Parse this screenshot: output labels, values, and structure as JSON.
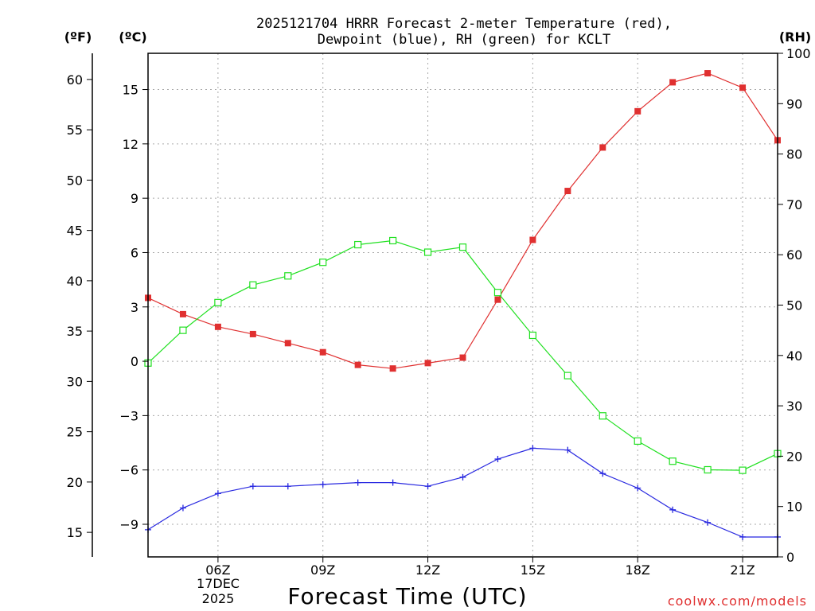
{
  "chart_data": {
    "type": "line",
    "title_line1": "2025121704 HRRR Forecast 2-meter Temperature (red),",
    "title_line2": "Dewpoint (blue), RH (green) for KCLT",
    "xlabel": "Forecast Time (UTC)",
    "credit": "coolwx.com/models",
    "unit_labels": {
      "fahrenheit": "(ºF)",
      "celsius": "(ºC)",
      "rh": "(RH)"
    },
    "date_labels": {
      "day": "17DEC",
      "year": "2025"
    },
    "x": [
      4,
      5,
      6,
      7,
      8,
      9,
      10,
      11,
      12,
      13,
      14,
      15,
      16,
      17,
      18,
      19,
      20,
      21,
      22
    ],
    "xlim": [
      4,
      22
    ],
    "x_ticks": [
      {
        "value": 6,
        "label": "06Z"
      },
      {
        "value": 9,
        "label": "09Z"
      },
      {
        "value": 12,
        "label": "12Z"
      },
      {
        "value": 15,
        "label": "15Z"
      },
      {
        "value": 18,
        "label": "18Z"
      },
      {
        "value": 21,
        "label": "21Z"
      }
    ],
    "ylim_celsius": [
      -10.8,
      17.0
    ],
    "celsius_ticks": [
      -9,
      -6,
      -3,
      0,
      3,
      6,
      9,
      12,
      15
    ],
    "celsius_tick_labels": [
      "−9",
      "−6",
      "−3",
      "0",
      "3",
      "6",
      "9",
      "12",
      "15"
    ],
    "fahrenheit_ticks": [
      15,
      20,
      25,
      30,
      35,
      40,
      45,
      50,
      55,
      60
    ],
    "fahrenheit_tick_labels": [
      "15",
      "20",
      "25",
      "30",
      "35",
      "40",
      "45",
      "50",
      "55",
      "60"
    ],
    "ylim_rh": [
      0,
      100
    ],
    "rh_ticks": [
      0,
      10,
      20,
      30,
      40,
      50,
      60,
      70,
      80,
      90,
      100
    ],
    "rh_tick_labels": [
      "0",
      "10",
      "20",
      "30",
      "40",
      "50",
      "60",
      "70",
      "80",
      "90",
      "100"
    ],
    "series": [
      {
        "name": "Temperature",
        "axis": "celsius",
        "color": "#e03030",
        "marker": "filled-square",
        "values": [
          3.5,
          2.6,
          1.9,
          1.5,
          1.0,
          0.5,
          -0.2,
          -0.4,
          -0.1,
          0.2,
          3.4,
          6.7,
          9.4,
          11.8,
          13.8,
          15.4,
          15.9,
          15.1,
          12.2
        ]
      },
      {
        "name": "Dewpoint",
        "axis": "celsius",
        "color": "#2828e0",
        "marker": "plus",
        "values": [
          -9.3,
          -8.1,
          -7.3,
          -6.9,
          -6.9,
          -6.8,
          -6.7,
          -6.7,
          -6.9,
          -6.4,
          -5.4,
          -4.8,
          -4.9,
          -6.2,
          -7.0,
          -8.2,
          -8.9,
          -9.7,
          -9.7
        ]
      },
      {
        "name": "RH",
        "axis": "rh",
        "color": "#20e020",
        "marker": "open-square",
        "values": [
          38.5,
          45.0,
          50.5,
          54.0,
          55.8,
          58.5,
          62.0,
          62.8,
          60.5,
          61.5,
          52.5,
          44.0,
          36.0,
          28.0,
          23.0,
          19.0,
          17.3,
          17.2,
          20.5
        ]
      }
    ]
  }
}
